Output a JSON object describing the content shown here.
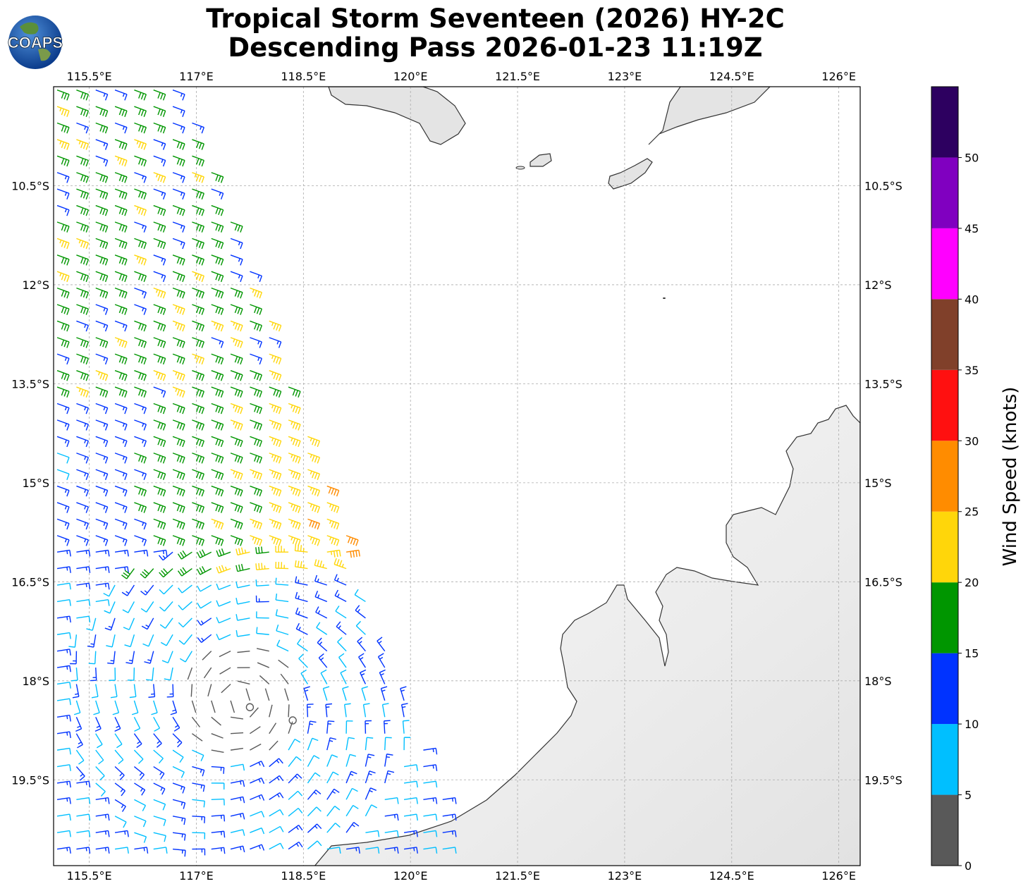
{
  "title": {
    "line1": "Tropical Storm Seventeen (2026) HY-2C",
    "line2": "Descending Pass 2026-01-23 11:19Z"
  },
  "logo": {
    "text": "COAPS",
    "icon": "globe-logo-icon"
  },
  "map": {
    "lon_range": [
      115.0,
      126.3
    ],
    "lat_range": [
      -20.8,
      -9.0
    ],
    "lon_ticks": [
      {
        "value": 115.5,
        "label": "115.5°E"
      },
      {
        "value": 117.0,
        "label": "117°E"
      },
      {
        "value": 118.5,
        "label": "118.5°E"
      },
      {
        "value": 120.0,
        "label": "120°E"
      },
      {
        "value": 121.5,
        "label": "121.5°E"
      },
      {
        "value": 123.0,
        "label": "123°E"
      },
      {
        "value": 124.5,
        "label": "124.5°E"
      },
      {
        "value": 126.0,
        "label": "126°E"
      }
    ],
    "lat_ticks": [
      {
        "value": -10.5,
        "label": "10.5°S"
      },
      {
        "value": -12.0,
        "label": "12°S"
      },
      {
        "value": -13.5,
        "label": "13.5°S"
      },
      {
        "value": -15.0,
        "label": "15°S"
      },
      {
        "value": -16.5,
        "label": "16.5°S"
      },
      {
        "value": -18.0,
        "label": "18°S"
      },
      {
        "value": -19.5,
        "label": "19.5°S"
      }
    ],
    "gridlines": true
  },
  "colorbar": {
    "label": "Wind Speed (knots)",
    "range": [
      0,
      55
    ],
    "ticks": [
      {
        "value": 0,
        "label": "0"
      },
      {
        "value": 5,
        "label": "5"
      },
      {
        "value": 10,
        "label": "10"
      },
      {
        "value": 15,
        "label": "15"
      },
      {
        "value": 20,
        "label": "20"
      },
      {
        "value": 25,
        "label": "25"
      },
      {
        "value": 30,
        "label": "30"
      },
      {
        "value": 35,
        "label": "35"
      },
      {
        "value": 40,
        "label": "40"
      },
      {
        "value": 45,
        "label": "45"
      },
      {
        "value": 50,
        "label": "50"
      }
    ],
    "bins": [
      {
        "from": 0,
        "to": 5,
        "color": "#595959"
      },
      {
        "from": 5,
        "to": 10,
        "color": "#00bfff"
      },
      {
        "from": 10,
        "to": 15,
        "color": "#0033ff"
      },
      {
        "from": 15,
        "to": 20,
        "color": "#009600"
      },
      {
        "from": 20,
        "to": 25,
        "color": "#ffd60a"
      },
      {
        "from": 25,
        "to": 30,
        "color": "#ff8c00"
      },
      {
        "from": 30,
        "to": 35,
        "color": "#ff1010"
      },
      {
        "from": 35,
        "to": 40,
        "color": "#80402a"
      },
      {
        "from": 40,
        "to": 45,
        "color": "#ff00ff"
      },
      {
        "from": 45,
        "to": 50,
        "color": "#8000c0"
      },
      {
        "from": 50,
        "to": 55,
        "color": "#2d0060"
      }
    ]
  },
  "wind_field": {
    "swath_description_color_by_speed": true,
    "storm_center": {
      "lon": 117.6,
      "lat": -18.3
    },
    "calm_rings": [
      {
        "lon": 117.75,
        "lat": -18.4
      },
      {
        "lon": 118.35,
        "lat": -18.6
      }
    ]
  }
}
